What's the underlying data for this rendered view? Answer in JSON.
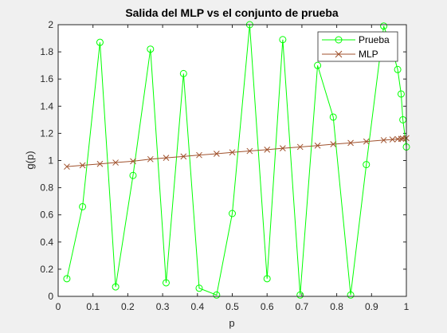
{
  "chart_data": {
    "type": "line",
    "title": "Salida del MLP vs el conjunto de prueba",
    "xlabel": "p",
    "ylabel": "g(p)",
    "xlim": [
      0,
      1
    ],
    "ylim": [
      0,
      2
    ],
    "xticks": [
      0,
      0.1,
      0.2,
      0.3,
      0.4,
      0.5,
      0.6,
      0.7,
      0.8,
      0.9,
      1
    ],
    "xtick_labels": [
      "0",
      "0.1",
      "0.2",
      "0.3",
      "0.4",
      "0.5",
      "0.6",
      "0.7",
      "0.8",
      "0.9",
      "1"
    ],
    "yticks": [
      0,
      0.2,
      0.4,
      0.6,
      0.8,
      1,
      1.2,
      1.4,
      1.6,
      1.8,
      2
    ],
    "ytick_labels": [
      "0",
      "0.2",
      "0.4",
      "0.6",
      "0.8",
      "1",
      "1.2",
      "1.4",
      "1.6",
      "1.8",
      "2"
    ],
    "grid": false,
    "legend_position": "top-right",
    "series": [
      {
        "name": "Prueba",
        "color": "#00ff00",
        "marker": "circle",
        "x": [
          0.025,
          0.07,
          0.12,
          0.165,
          0.215,
          0.265,
          0.31,
          0.36,
          0.405,
          0.455,
          0.5,
          0.55,
          0.6,
          0.645,
          0.695,
          0.745,
          0.79,
          0.84,
          0.885,
          0.935,
          0.96,
          0.975,
          0.985,
          0.99,
          1.0
        ],
        "y": [
          0.13,
          0.66,
          1.87,
          0.07,
          0.89,
          1.82,
          0.1,
          1.64,
          0.06,
          0.01,
          0.61,
          2.0,
          0.13,
          1.89,
          0.01,
          1.7,
          1.32,
          0.01,
          0.97,
          1.99,
          1.81,
          1.67,
          1.49,
          1.3,
          1.1
        ]
      },
      {
        "name": "MLP",
        "color": "#a0522d",
        "marker": "x",
        "x": [
          0.025,
          0.07,
          0.12,
          0.165,
          0.215,
          0.265,
          0.31,
          0.36,
          0.405,
          0.455,
          0.5,
          0.55,
          0.6,
          0.645,
          0.695,
          0.745,
          0.79,
          0.84,
          0.885,
          0.935,
          0.96,
          0.975,
          0.985,
          0.99,
          1.0
        ],
        "y": [
          0.955,
          0.965,
          0.975,
          0.985,
          0.995,
          1.01,
          1.02,
          1.03,
          1.04,
          1.05,
          1.06,
          1.07,
          1.08,
          1.09,
          1.1,
          1.11,
          1.12,
          1.13,
          1.14,
          1.15,
          1.155,
          1.158,
          1.16,
          1.162,
          1.165
        ]
      }
    ]
  }
}
